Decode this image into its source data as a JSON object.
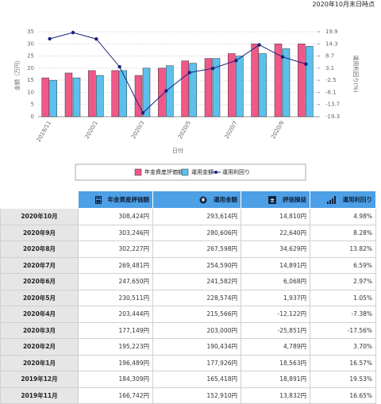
{
  "header": {
    "date": "2020年10月末日時点"
  },
  "chart_data": {
    "type": "bar",
    "categories": [
      "2019/11",
      null,
      "2020/1",
      null,
      "2020/3",
      null,
      "2020/5",
      null,
      "2020/7",
      null,
      "2020/9",
      null
    ],
    "y_label": "金額（万円）",
    "y2_label": "運用利回り(%)",
    "x_label": "日付",
    "ylim": [
      0,
      35
    ],
    "yticks": [
      0,
      5,
      10,
      15,
      20,
      25,
      30,
      35
    ],
    "y2lim": [
      -19.3,
      19.9
    ],
    "y2ticks": [
      -19.3,
      -13.7,
      -8.1,
      -2.5,
      3.1,
      8.7,
      14.3,
      19.9
    ],
    "grid": true,
    "series": [
      {
        "name": "年金資産評価額",
        "type": "bar",
        "color": "#f0588a",
        "values": [
          16,
          18,
          19,
          19,
          17,
          20,
          23,
          24,
          26,
          30,
          30,
          30
        ]
      },
      {
        "name": "運用金額",
        "type": "bar",
        "color": "#5bc0ee",
        "values": [
          15,
          16,
          17,
          19,
          20,
          21,
          22,
          24,
          25,
          26,
          28,
          29
        ]
      },
      {
        "name": "運用利回り",
        "type": "line",
        "axis": "y2",
        "color": "#1a237e",
        "values": [
          16.65,
          19.53,
          16.57,
          3.7,
          -17.56,
          -7.38,
          1.05,
          2.97,
          6.59,
          13.82,
          8.28,
          4.98
        ]
      }
    ]
  },
  "table": {
    "columns": [
      "年金資産評価額",
      "運用金額",
      "評価損益",
      "運用利回り"
    ],
    "rows": [
      [
        "2020年10月",
        "308,424円",
        "293,614円",
        "14,810円",
        "4.98%"
      ],
      [
        "2020年9月",
        "303,246円",
        "280,606円",
        "22,640円",
        "8.28%"
      ],
      [
        "2020年8月",
        "302,227円",
        "267,598円",
        "34,629円",
        "13.82%"
      ],
      [
        "2020年7月",
        "269,481円",
        "254,590円",
        "14,891円",
        "6.59%"
      ],
      [
        "2020年6月",
        "247,650円",
        "241,582円",
        "6,068円",
        "2.97%"
      ],
      [
        "2020年5月",
        "230,511円",
        "228,574円",
        "1,937円",
        "1.05%"
      ],
      [
        "2020年4月",
        "203,444円",
        "215,566円",
        "-12,122円",
        "-7.38%"
      ],
      [
        "2020年3月",
        "177,149円",
        "203,000円",
        "-25,851円",
        "-17.56%"
      ],
      [
        "2020年2月",
        "195,223円",
        "190,434円",
        "4,789円",
        "3.70%"
      ],
      [
        "2020年1月",
        "196,489円",
        "177,926円",
        "18,563円",
        "16.57%"
      ],
      [
        "2019年12月",
        "184,309円",
        "165,418円",
        "18,891円",
        "19.53%"
      ],
      [
        "2019年11月",
        "166,742円",
        "152,910円",
        "13,832円",
        "16.65%"
      ]
    ]
  }
}
